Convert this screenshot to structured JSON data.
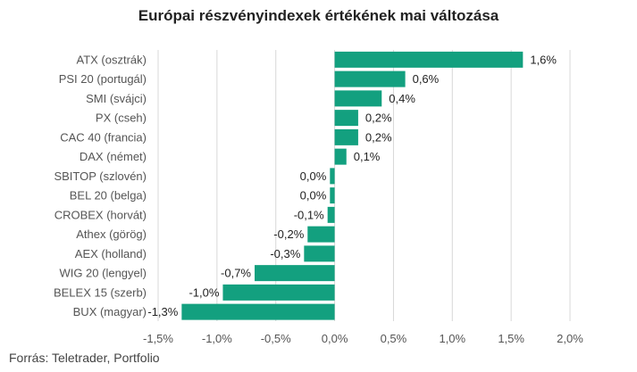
{
  "colors": {
    "bar": "#13a07f",
    "grid": "#d8d8d8"
  },
  "chart_data": {
    "type": "bar",
    "orientation": "horizontal",
    "title": "Európai részvényindexek értékének mai változása",
    "source": "Forrás: Teletrader, Portfolio",
    "categories": [
      "ATX (osztrák)",
      "PSI 20 (portugál)",
      "SMI (svájci)",
      "PX (cseh)",
      "CAC 40 (francia)",
      "DAX (német)",
      "SBITOP (szlovén)",
      "BEL 20 (belga)",
      "CROBEX (horvát)",
      "Athex (görög)",
      "AEX (holland)",
      "WIG 20 (lengyel)",
      "BELEX 15 (szerb)",
      "BUX (magyar)"
    ],
    "values": [
      1.6,
      0.6,
      0.4,
      0.2,
      0.2,
      0.1,
      -0.04,
      -0.04,
      -0.06,
      -0.23,
      -0.26,
      -0.68,
      -0.95,
      -1.3
    ],
    "value_labels": [
      "1,6%",
      "0,6%",
      "0,4%",
      "0,2%",
      "0,2%",
      "0,1%",
      "0,0%",
      "0,0%",
      "-0,1%",
      "-0,2%",
      "-0,3%",
      "-0,7%",
      "-1,0%",
      "-1,3%"
    ],
    "xlim": [
      -1.5,
      2.0
    ],
    "xticks": [
      -1.5,
      -1.0,
      -0.5,
      0.0,
      0.5,
      1.0,
      1.5,
      2.0
    ],
    "xtick_labels": [
      "-1,5%",
      "-1,0%",
      "-0,5%",
      "0,0%",
      "0,5%",
      "1,0%",
      "1,5%",
      "2,0%"
    ],
    "grid": true,
    "legend": "none"
  }
}
